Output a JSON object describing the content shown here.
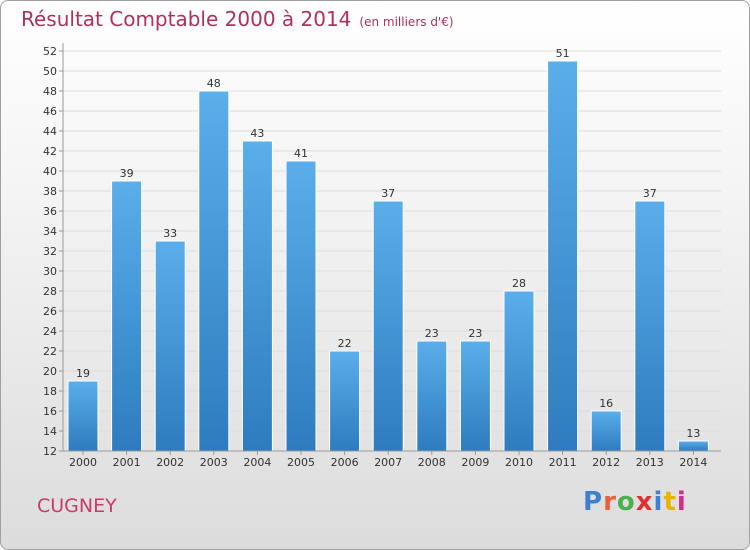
{
  "title": "Résultat Comptable 2000 à 2014",
  "subtitle": "(en milliers d'€)",
  "commune": "CUGNEY",
  "logo": {
    "text": "Proxiti",
    "colors": [
      "#3d7fd0",
      "#e8603c",
      "#4caf50",
      "#e0302c",
      "#3d7fd0",
      "#e8b400",
      "#d0308a"
    ]
  },
  "colors": {
    "bar_top": "#5aaeea",
    "bar_bottom": "#2e7cbf",
    "title": "#b0305a",
    "commune": "#cc3a6a"
  },
  "chart_data": {
    "type": "bar",
    "categories": [
      "2000",
      "2001",
      "2002",
      "2003",
      "2004",
      "2005",
      "2006",
      "2007",
      "2008",
      "2009",
      "2010",
      "2011",
      "2012",
      "2013",
      "2014"
    ],
    "values": [
      19,
      39,
      33,
      48,
      43,
      41,
      22,
      37,
      23,
      23,
      28,
      51,
      16,
      37,
      13
    ],
    "ylim": [
      12,
      52
    ],
    "yticks": [
      12,
      14,
      16,
      18,
      20,
      22,
      24,
      26,
      28,
      30,
      32,
      34,
      36,
      38,
      40,
      42,
      44,
      46,
      48,
      50,
      52
    ],
    "grid": true
  }
}
